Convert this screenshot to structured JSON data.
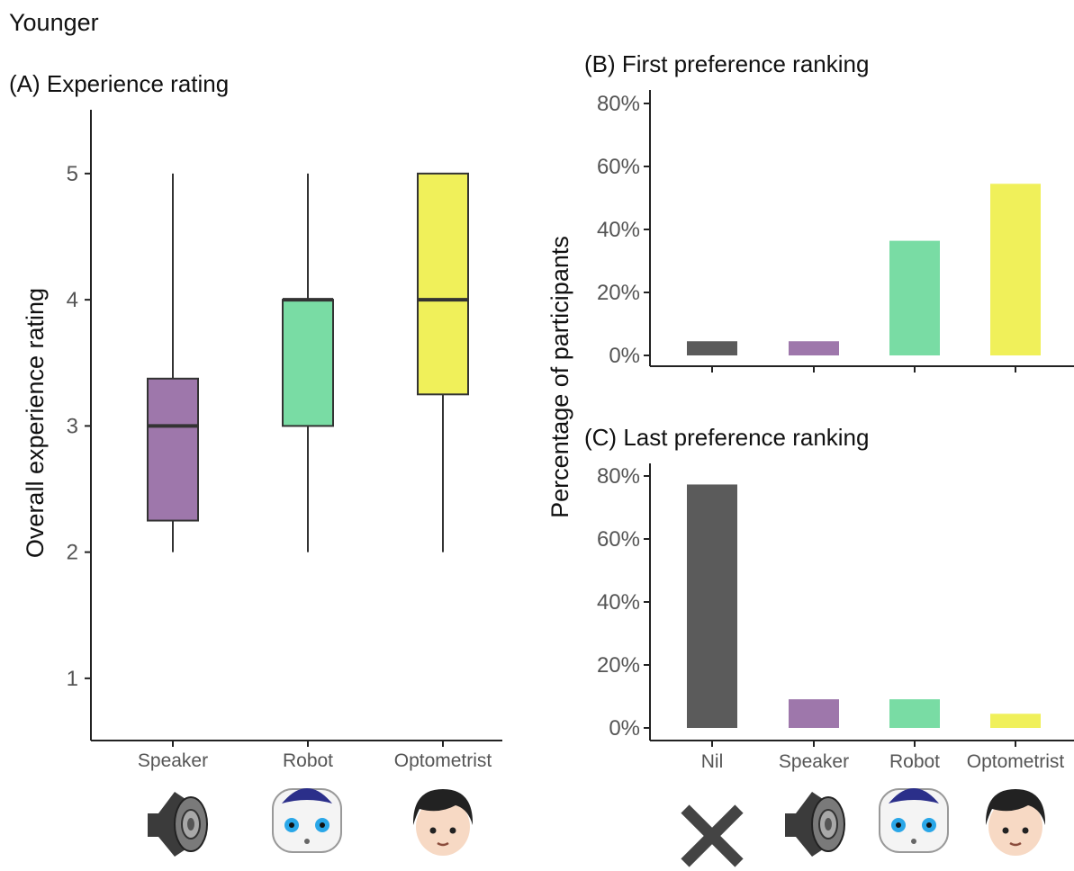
{
  "figure": {
    "title": "Younger"
  },
  "colors": {
    "nil": "#5b5b5b",
    "speaker": "#9e77ab",
    "robot": "#79dca4",
    "optometrist": "#f0f05a",
    "axis": "#222222",
    "tick_text": "#555555",
    "median": "#333333"
  },
  "icons": [
    "x-icon",
    "speaker-icon",
    "robot-icon",
    "optometrist-person-icon"
  ],
  "chart_data": [
    {
      "id": "A",
      "type": "box",
      "title": "(A) Experience rating",
      "ylabel": "Overall experience rating",
      "xlabel": "",
      "ylim": [
        0.5,
        5.5
      ],
      "yticks": [
        "1",
        "2",
        "3",
        "4",
        "5"
      ],
      "categories": [
        "Speaker",
        "Robot",
        "Optometrist"
      ],
      "boxes": [
        {
          "name": "Speaker",
          "min": 2,
          "q1": 2.25,
          "median": 3,
          "q3": 3.375,
          "max": 5
        },
        {
          "name": "Robot",
          "min": 2,
          "q1": 3,
          "median": 4,
          "q3": 4,
          "max": 5
        },
        {
          "name": "Optometrist",
          "min": 2,
          "q1": 3.25,
          "median": 4,
          "q3": 5,
          "max": 5
        }
      ]
    },
    {
      "id": "B",
      "type": "bar",
      "title": "(B) First preference ranking",
      "ylabel": "Percentage of participants",
      "xlabel": "",
      "ylim": [
        0,
        80
      ],
      "yticks": [
        "0%",
        "20%",
        "40%",
        "60%",
        "80%"
      ],
      "categories": [
        "Nil",
        "Speaker",
        "Robot",
        "Optometrist"
      ],
      "values": [
        4.5,
        4.5,
        36.4,
        54.5
      ]
    },
    {
      "id": "C",
      "type": "bar",
      "title": "(C) Last preference ranking",
      "ylabel": "",
      "xlabel": "",
      "ylim": [
        0,
        80
      ],
      "yticks": [
        "0%",
        "20%",
        "40%",
        "60%",
        "80%"
      ],
      "categories": [
        "Nil",
        "Speaker",
        "Robot",
        "Optometrist"
      ],
      "values": [
        77.3,
        9.1,
        9.1,
        4.5
      ]
    }
  ]
}
